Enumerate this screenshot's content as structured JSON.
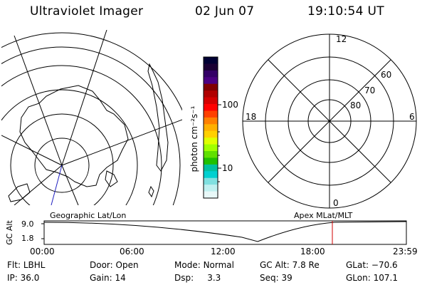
{
  "header": {
    "title": "Ultraviolet Imager",
    "date": "02 Jun 07",
    "time": "19:10:54 UT"
  },
  "colorbar": {
    "label": "photon cm⁻²s⁻¹",
    "ticks": [
      "100",
      "10"
    ],
    "colors": [
      "#000033",
      "#1a0033",
      "#330066",
      "#4b0082",
      "#800000",
      "#b00000",
      "#d40000",
      "#ff0000",
      "#ff4000",
      "#ff8000",
      "#ffb000",
      "#ffd000",
      "#e0ff00",
      "#a0ff00",
      "#60e000",
      "#20c000",
      "#00c0a0",
      "#00d0d0",
      "#80e0e0",
      "#c0f0f0",
      "#e8f8f8"
    ]
  },
  "right_polar": {
    "top_label": "12",
    "bottom_label": "0",
    "left_label": "18",
    "right_label": "6",
    "ring_labels": [
      "60",
      "70",
      "80"
    ]
  },
  "strip": {
    "left_title": "Geographic Lat/Lon",
    "right_title": "Apex MLat/MLT",
    "y_axis_label": "GC Alt",
    "y_ticks": [
      "9.0",
      "1.8"
    ],
    "x_ticks": [
      "00:00",
      "06:00",
      "12:00",
      "18:00",
      "23:59"
    ]
  },
  "info": {
    "flt_label": "Flt:",
    "flt_value": "LBHL",
    "ip_label": "IP:",
    "ip_value": "36.0",
    "door_label": "Door:",
    "door_value": "Open",
    "gain_label": "Gain:",
    "gain_value": "14",
    "mode_label": "Mode:",
    "mode_value": "Normal",
    "dsp_label": "Dsp:",
    "dsp_value": "3.3",
    "gcalt_label": "GC Alt:",
    "gcalt_value": "7.8 Re",
    "seq_label": "Seq:",
    "seq_value": "39",
    "glat_label": "GLat:",
    "glat_value": "−70.6",
    "glon_label": "GLon:",
    "glon_value": "107.1"
  }
}
